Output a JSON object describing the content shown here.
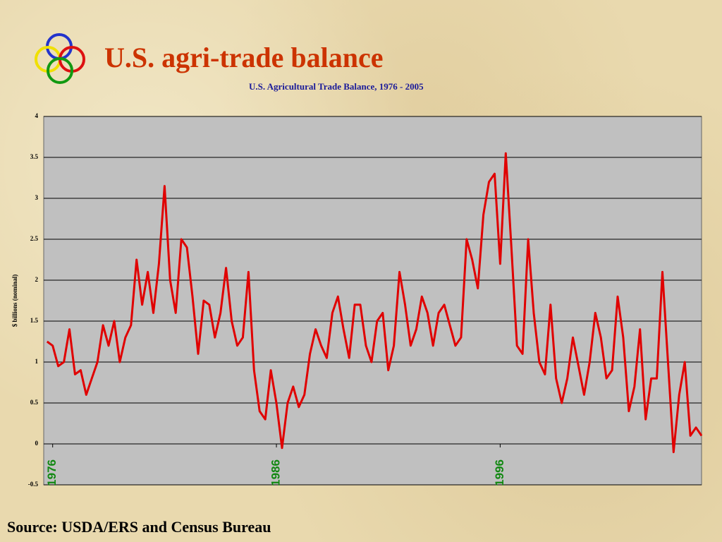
{
  "chart_data": {
    "type": "line",
    "title": "U.S. agri-trade balance",
    "subtitle": "U.S. Agricultural Trade Balance, 1976 - 2005",
    "y_label": "$ billions (nominal)",
    "source": "Source: USDA/ERS and Census Bureau",
    "color": "#e00000",
    "x": [
      1975.75,
      1976,
      1976.25,
      1976.5,
      1976.75,
      1977,
      1977.25,
      1977.5,
      1977.75,
      1978,
      1978.25,
      1978.5,
      1978.75,
      1979,
      1979.25,
      1979.5,
      1979.75,
      1980,
      1980.25,
      1980.5,
      1980.75,
      1981,
      1981.25,
      1981.5,
      1981.75,
      1982,
      1982.25,
      1982.5,
      1982.75,
      1983,
      1983.25,
      1983.5,
      1983.75,
      1984,
      1984.25,
      1984.5,
      1984.75,
      1985,
      1985.25,
      1985.5,
      1985.75,
      1986,
      1986.25,
      1986.5,
      1986.75,
      1987,
      1987.25,
      1987.5,
      1987.75,
      1988,
      1988.25,
      1988.5,
      1988.75,
      1989,
      1989.25,
      1989.5,
      1989.75,
      1990,
      1990.25,
      1990.5,
      1990.75,
      1991,
      1991.25,
      1991.5,
      1991.75,
      1992,
      1992.25,
      1992.5,
      1992.75,
      1993,
      1993.25,
      1993.5,
      1993.75,
      1994,
      1994.25,
      1994.5,
      1994.75,
      1995,
      1995.25,
      1995.5,
      1995.75,
      1996,
      1996.25,
      1996.5,
      1996.75,
      1997,
      1997.25,
      1997.5,
      1997.75,
      1998,
      1998.25,
      1998.5,
      1998.75,
      1999,
      1999.25,
      1999.5,
      1999.75,
      2000,
      2000.25,
      2000.5,
      2000.75,
      2001,
      2001.25,
      2001.5,
      2001.75,
      2002,
      2002.25,
      2002.5,
      2002.75,
      2003,
      2003.25,
      2003.5,
      2003.75,
      2004,
      2004.25,
      2004.5,
      2004.75,
      2005
    ],
    "values": [
      1.25,
      1.2,
      0.95,
      1.0,
      1.4,
      0.85,
      0.9,
      0.6,
      0.8,
      1.0,
      1.45,
      1.2,
      1.5,
      1.0,
      1.3,
      1.45,
      2.25,
      1.7,
      2.1,
      1.6,
      2.2,
      3.15,
      2.0,
      1.6,
      2.5,
      2.4,
      1.8,
      1.1,
      1.75,
      1.7,
      1.3,
      1.6,
      2.15,
      1.5,
      1.2,
      1.3,
      2.1,
      0.9,
      0.4,
      0.3,
      0.9,
      0.5,
      -0.05,
      0.5,
      0.7,
      0.45,
      0.6,
      1.1,
      1.4,
      1.2,
      1.05,
      1.6,
      1.8,
      1.4,
      1.05,
      1.7,
      1.7,
      1.2,
      1.0,
      1.5,
      1.6,
      0.9,
      1.2,
      2.1,
      1.7,
      1.2,
      1.4,
      1.8,
      1.6,
      1.2,
      1.6,
      1.7,
      1.45,
      1.2,
      1.3,
      2.5,
      2.25,
      1.9,
      2.8,
      3.2,
      3.3,
      2.2,
      3.55,
      2.4,
      1.2,
      1.1,
      2.5,
      1.6,
      1.0,
      0.85,
      1.7,
      0.8,
      0.5,
      0.8,
      1.3,
      0.95,
      0.6,
      1.0,
      1.6,
      1.3,
      0.8,
      0.9,
      1.8,
      1.3,
      0.4,
      0.7,
      1.4,
      0.3,
      0.8,
      0.8,
      2.1,
      1.0,
      -0.1,
      0.6,
      1.0,
      0.1,
      0.2,
      0.1
    ],
    "xlim": [
      1975.6,
      2005.0
    ],
    "xticks": [
      1976,
      1986,
      1996
    ],
    "ylim": [
      -0.5,
      4
    ],
    "yticks": [
      -0.5,
      0,
      0.5,
      1,
      1.5,
      2,
      2.5,
      3,
      3.5,
      4
    ],
    "grid": true
  }
}
